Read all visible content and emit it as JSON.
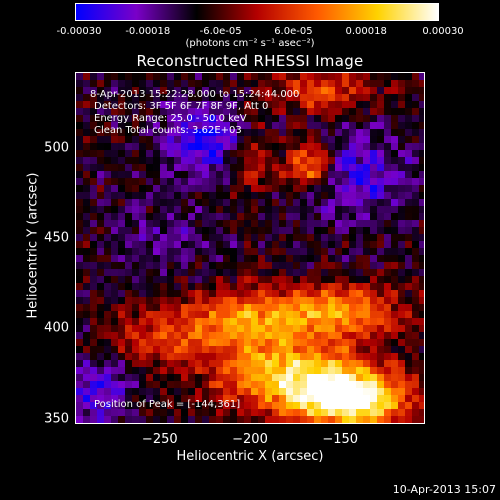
{
  "colorbar": {
    "ticks": [
      "-0.00030",
      "-0.00018",
      "-6.0e-05",
      "6.0e-05",
      "0.00018",
      "0.00030"
    ],
    "tick_values": [
      -0.0003,
      -0.00018,
      -6e-05,
      6e-05,
      0.00018,
      0.0003
    ],
    "range": [
      -0.0003,
      0.0003
    ],
    "units_label": "(photons cm⁻² s⁻¹ asec⁻²)",
    "colors": [
      "#0000ff",
      "#7a00c8",
      "#000000",
      "#b40000",
      "#ff5a00",
      "#ffd200",
      "#ffffff"
    ]
  },
  "chart_data": {
    "type": "heatmap",
    "title": "Reconstructed RHESSI Image",
    "xlabel": "Heliocentric X (arcsec)",
    "ylabel": "Heliocentric Y (arcsec)",
    "xlim": [
      -297,
      -103
    ],
    "ylim": [
      347,
      542
    ],
    "xticks": [
      -250,
      -200,
      -150
    ],
    "yticks": [
      500,
      450,
      400,
      350
    ],
    "annotations": [
      "8-Apr-2013 15:22:28.000 to 15:24:44.000",
      "Detectors: 3F 5F 6F 7F 8F 9F, Att 0",
      "Energy Range: 25.0 - 50.0 keV",
      "Clean     Total counts: 3.62E+03"
    ],
    "peak_label": "Position of Peak = [-144,361]",
    "peak": [
      -144,
      361
    ],
    "sources": [
      {
        "x": -144,
        "y": 361,
        "amp": 1.0,
        "sx": 22,
        "sy": 11
      },
      {
        "x": -178,
        "y": 375,
        "amp": 0.75,
        "sx": 30,
        "sy": 14
      },
      {
        "x": -205,
        "y": 405,
        "amp": 0.55,
        "sx": 26,
        "sy": 12
      },
      {
        "x": -150,
        "y": 410,
        "amp": 0.6,
        "sx": 24,
        "sy": 10
      },
      {
        "x": -168,
        "y": 490,
        "amp": 0.7,
        "sx": 10,
        "sy": 10
      },
      {
        "x": -200,
        "y": 495,
        "amp": 0.4,
        "sx": 8,
        "sy": 14
      },
      {
        "x": -160,
        "y": 532,
        "amp": 0.45,
        "sx": 20,
        "sy": 8
      },
      {
        "x": -255,
        "y": 395,
        "amp": 0.35,
        "sx": 18,
        "sy": 10
      }
    ],
    "negative_regions": [
      {
        "x": -225,
        "y": 505,
        "amp": -0.45,
        "sx": 18,
        "sy": 14
      },
      {
        "x": -145,
        "y": 485,
        "amp": -0.4,
        "sx": 22,
        "sy": 16
      },
      {
        "x": -250,
        "y": 450,
        "amp": -0.2,
        "sx": 20,
        "sy": 12
      },
      {
        "x": -285,
        "y": 365,
        "amp": -0.35,
        "sx": 14,
        "sy": 14
      }
    ]
  },
  "footer": {
    "timestamp": "10-Apr-2013 15:07"
  }
}
